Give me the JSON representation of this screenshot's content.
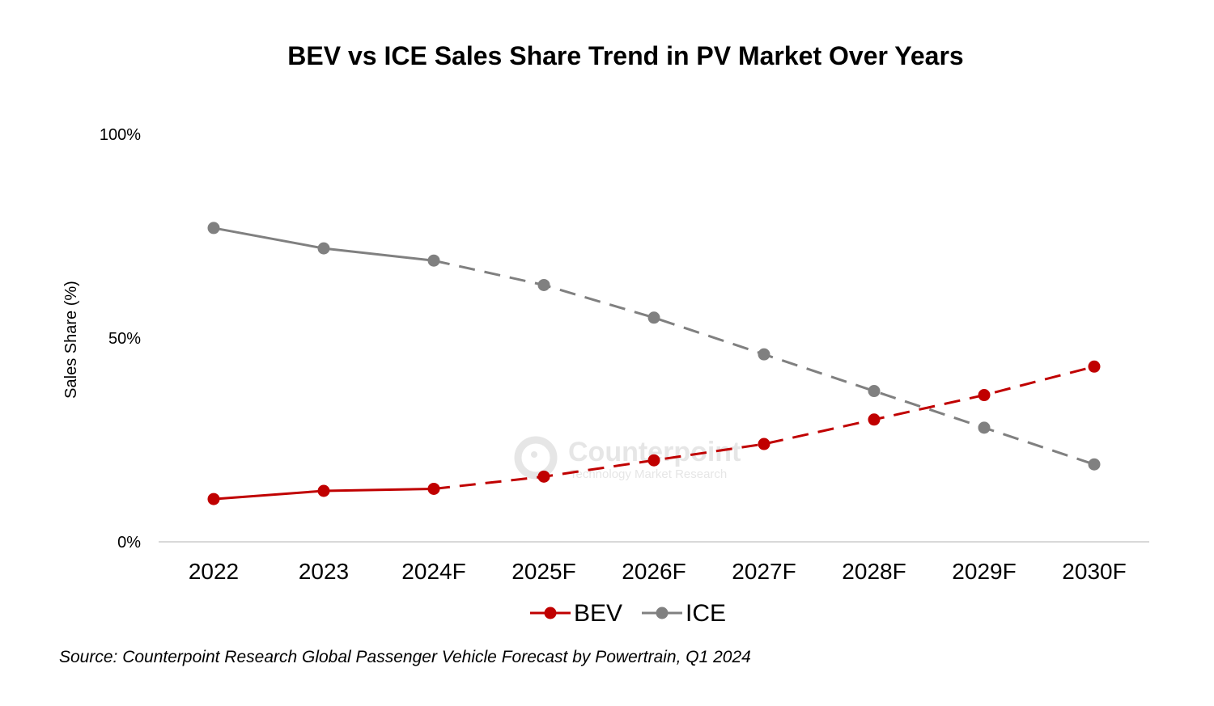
{
  "chart_data": {
    "type": "line",
    "title": "BEV vs ICE Sales Share Trend in PV Market Over Years",
    "xlabel": "",
    "ylabel": "Sales Share (%)",
    "ylim": [
      0,
      100
    ],
    "yticks": [
      0,
      50,
      100
    ],
    "ytick_labels": [
      "0%",
      "50%",
      "100%"
    ],
    "categories": [
      "2022",
      "2023",
      "2024F",
      "2025F",
      "2026F",
      "2027F",
      "2028F",
      "2029F",
      "2030F"
    ],
    "forecast_starts_after_index": 2,
    "grid": false,
    "legend_position": "bottom",
    "series": [
      {
        "name": "BEV",
        "color": "#c00000",
        "values": [
          10.5,
          12.5,
          13,
          16,
          20,
          24,
          30,
          36,
          43
        ]
      },
      {
        "name": "ICE",
        "color": "#808080",
        "values": [
          77,
          72,
          69,
          63,
          55,
          46,
          37,
          28,
          19
        ]
      }
    ],
    "source": "Source: Counterpoint Research Global Passenger Vehicle Forecast by Powertrain, Q1 2024",
    "watermark": {
      "name": "Counterpoint",
      "tagline": "Technology Market Research"
    }
  }
}
